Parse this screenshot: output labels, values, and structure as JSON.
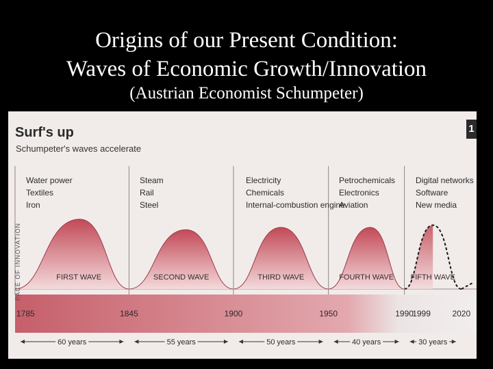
{
  "slide": {
    "title_line1": "Origins of our Present Condition:",
    "title_line2": "Waves of Economic Growth/Innovation",
    "subtitle": "(Austrian Economist Schumpeter)"
  },
  "chart_data": {
    "type": "area",
    "title": "Surf's up",
    "subtitle": "Schumpeter's waves accelerate",
    "figure_number": "1",
    "ylabel": "PACE OF INNOVATION",
    "x_ticks": [
      "1785",
      "1845",
      "1900",
      "1950",
      "1990",
      "1999",
      "2020"
    ],
    "xlim": [
      1785,
      2028
    ],
    "ylim": [
      0,
      1
    ],
    "series": [
      {
        "name": "FIRST WAVE",
        "start": 1785,
        "end": 1845,
        "peak_year": 1819,
        "peak": 0.93,
        "innovations": [
          "Water power",
          "Textiles",
          "Iron"
        ]
      },
      {
        "name": "SECOND WAVE",
        "start": 1845,
        "end": 1900,
        "peak_year": 1875,
        "peak": 0.79,
        "innovations": [
          "Steam",
          "Rail",
          "Steel"
        ]
      },
      {
        "name": "THIRD WAVE",
        "start": 1900,
        "end": 1950,
        "peak_year": 1925,
        "peak": 0.82,
        "innovations": [
          "Electricity",
          "Chemicals",
          "Internal-combustion engine"
        ]
      },
      {
        "name": "FOURTH WAVE",
        "start": 1950,
        "end": 1990,
        "peak_year": 1972,
        "peak": 0.82,
        "innovations": [
          "Petrochemicals",
          "Electronics",
          "Aviation"
        ]
      },
      {
        "name": "FIFTH WAVE",
        "start": 1990,
        "end": 2020,
        "peak_year": 2005,
        "peak": 0.85,
        "innovations": [
          "Digital networks",
          "Software",
          "New media"
        ],
        "projected": true
      }
    ],
    "durations": [
      "60 years",
      "55 years",
      "50 years",
      "40 years",
      "30 years"
    ],
    "colors": {
      "wave_fill": "#c24a57",
      "wave_fill_light": "#f3dadc",
      "band": "#d98d95",
      "projection": "#1a1a1a"
    }
  }
}
